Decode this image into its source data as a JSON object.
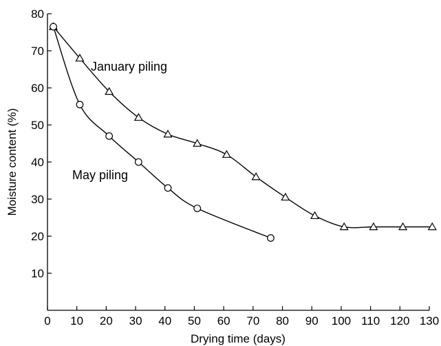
{
  "chart_data": {
    "type": "line",
    "xlabel": "Drying time (days)",
    "ylabel": "Moisture content (%)",
    "xlim": [
      0,
      130
    ],
    "ylim": [
      0,
      80
    ],
    "x_ticks": [
      0,
      10,
      20,
      30,
      40,
      50,
      60,
      70,
      80,
      90,
      100,
      110,
      120,
      130
    ],
    "y_ticks": [
      10,
      20,
      30,
      40,
      50,
      60,
      70,
      80
    ],
    "grid": false,
    "series": [
      {
        "name": "January piling",
        "marker": "triangle",
        "points": [
          {
            "x": 2,
            "y": 76.5
          },
          {
            "x": 11,
            "y": 68
          },
          {
            "x": 21,
            "y": 59
          },
          {
            "x": 31,
            "y": 52
          },
          {
            "x": 41,
            "y": 47.5
          },
          {
            "x": 51,
            "y": 45
          },
          {
            "x": 61,
            "y": 42
          },
          {
            "x": 71,
            "y": 36
          },
          {
            "x": 81,
            "y": 30.5
          },
          {
            "x": 91,
            "y": 25.5
          },
          {
            "x": 101,
            "y": 22.5
          },
          {
            "x": 111,
            "y": 22.5
          },
          {
            "x": 121,
            "y": 22.5
          },
          {
            "x": 131,
            "y": 22.5
          }
        ]
      },
      {
        "name": "May piling",
        "marker": "circle",
        "points": [
          {
            "x": 2,
            "y": 76.5
          },
          {
            "x": 11,
            "y": 55.5
          },
          {
            "x": 21,
            "y": 47
          },
          {
            "x": 31,
            "y": 40
          },
          {
            "x": 41,
            "y": 33
          },
          {
            "x": 51,
            "y": 27.5
          },
          {
            "x": 76,
            "y": 19.5
          }
        ]
      }
    ],
    "annotations": [
      {
        "text": "January piling",
        "series": "January piling"
      },
      {
        "text": "May piling",
        "series": "May piling"
      }
    ]
  }
}
